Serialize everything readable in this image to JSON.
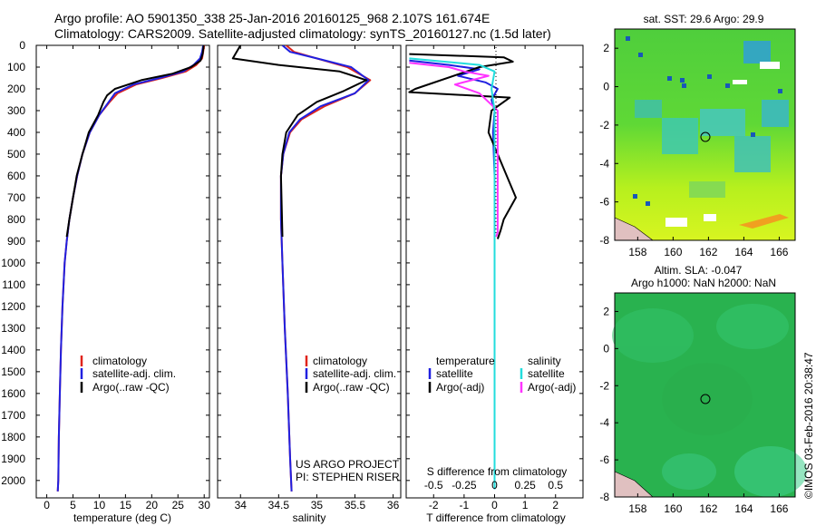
{
  "header": {
    "line1": "Argo profile: AO 5901350_338 25-Jan-2016 20160125_968 2.107S 161.674E",
    "line2": "Climatology: CARS2009. Satellite-adjusted climatology: synTS_20160127.nc (1.5d later)"
  },
  "chart_data": [
    {
      "type": "line",
      "name": "temperature-panel",
      "xlabel": "temperature (deg C)",
      "xlim": [
        -2,
        31
      ],
      "xticks": [
        0,
        5,
        10,
        15,
        20,
        25,
        30
      ],
      "ylim": [
        2080,
        0
      ],
      "yticks": [
        0,
        100,
        200,
        300,
        400,
        500,
        600,
        700,
        800,
        900,
        1000,
        1100,
        1200,
        1300,
        1400,
        1500,
        1600,
        1700,
        1800,
        1900,
        2000
      ],
      "legend": [
        "climatology",
        "satellite-adj. clim.",
        "Argo(..raw -QC)"
      ],
      "series": [
        {
          "color": "#e0241b",
          "x": [
            30.0,
            29.8,
            29.6,
            28.5,
            26.5,
            22.0,
            17.0,
            13.5,
            12.0,
            10.0,
            8.2,
            6.8,
            5.8,
            5.0,
            4.3,
            3.8,
            3.4,
            3.0,
            2.7,
            2.5,
            2.3,
            2.2,
            2.1
          ],
          "y": [
            0,
            30,
            60,
            90,
            120,
            150,
            180,
            220,
            260,
            320,
            400,
            500,
            600,
            700,
            800,
            900,
            1000,
            1200,
            1400,
            1600,
            1800,
            2000,
            2050
          ]
        },
        {
          "color": "#2020e0",
          "x": [
            29.8,
            29.6,
            29.2,
            28.0,
            26.0,
            21.5,
            16.5,
            13.0,
            11.8,
            10.0,
            8.2,
            6.8,
            5.8,
            5.0,
            4.3,
            3.8,
            3.4,
            3.0,
            2.7,
            2.5,
            2.3,
            2.2,
            2.1
          ],
          "y": [
            0,
            30,
            60,
            90,
            120,
            150,
            180,
            220,
            260,
            320,
            400,
            500,
            600,
            700,
            800,
            900,
            1000,
            1200,
            1400,
            1600,
            1800,
            2000,
            2050
          ]
        },
        {
          "color": "#000000",
          "x": [
            29.9,
            29.7,
            29.3,
            27.5,
            24.0,
            18.0,
            13.0,
            11.5,
            10.8,
            9.8,
            8.0,
            6.8,
            5.7,
            5.0,
            4.3,
            3.8
          ],
          "y": [
            0,
            40,
            70,
            100,
            130,
            160,
            200,
            230,
            260,
            320,
            400,
            500,
            600,
            700,
            800,
            880
          ]
        }
      ]
    },
    {
      "type": "line",
      "name": "salinity-panel",
      "xlabel": "salinity",
      "xlim": [
        33.7,
        36.1
      ],
      "xticks": [
        34,
        34.5,
        35,
        35.5,
        36
      ],
      "ylim": [
        2080,
        0
      ],
      "legend": [
        "climatology",
        "satellite-adj. clim.",
        "Argo(..raw -QC)"
      ],
      "annotation": [
        "US ARGO PROJECT",
        "PI: STEPHEN RISER"
      ],
      "series": [
        {
          "color": "#e0241b",
          "x": [
            34.6,
            34.7,
            35.0,
            35.4,
            35.7,
            35.5,
            35.1,
            34.8,
            34.65,
            34.56,
            34.53,
            34.53,
            34.55,
            34.58,
            34.62,
            34.65,
            34.67
          ],
          "y": [
            0,
            30,
            60,
            100,
            160,
            220,
            280,
            340,
            400,
            500,
            600,
            800,
            1000,
            1300,
            1600,
            1900,
            2050
          ]
        },
        {
          "color": "#2020e0",
          "x": [
            34.55,
            34.65,
            35.0,
            35.45,
            35.68,
            35.5,
            35.05,
            34.78,
            34.64,
            34.56,
            34.53,
            34.53,
            34.55,
            34.58,
            34.62,
            34.65,
            34.67
          ],
          "y": [
            0,
            30,
            60,
            100,
            160,
            220,
            280,
            340,
            400,
            500,
            600,
            800,
            1000,
            1300,
            1600,
            1900,
            2050
          ]
        },
        {
          "color": "#000000",
          "x": [
            34.0,
            33.9,
            34.5,
            35.3,
            35.65,
            35.35,
            35.0,
            34.75,
            34.6,
            34.55,
            34.53,
            34.55
          ],
          "y": [
            0,
            60,
            90,
            120,
            160,
            210,
            260,
            320,
            400,
            500,
            600,
            880
          ]
        }
      ]
    },
    {
      "type": "line",
      "name": "difference-panel",
      "xlabel_top": "S difference from climatology",
      "xlabel": "T difference from climatology",
      "xlim": [
        -2.9,
        2.9
      ],
      "xticks": [
        -2,
        -1,
        0,
        1,
        2
      ],
      "xticks_top_labels": [
        "-0.5",
        "-0.25",
        "0",
        "0.25",
        "0.5"
      ],
      "ylim": [
        2080,
        0
      ],
      "legend_titles": [
        "temperature",
        "salinity"
      ],
      "legend": [
        "satellite",
        "Argo(-adj)",
        "satellite",
        "Argo(-adj)"
      ],
      "series": [
        {
          "color": "#2020e0",
          "x": [
            -2.8,
            -1.5,
            -0.5,
            -1.2,
            -0.3,
            0.1,
            -0.1,
            0.0,
            -0.05,
            0.0,
            0.0,
            0.0,
            0.0,
            0.0
          ],
          "y": [
            70,
            90,
            110,
            140,
            170,
            200,
            250,
            300,
            400,
            600,
            900,
            1300,
            1700,
            2040
          ]
        },
        {
          "color": "#000000",
          "x": [
            -2.8,
            0.3,
            0.6,
            -0.5,
            -2.6,
            -2.8,
            0.5,
            -0.1,
            -0.2,
            0.1,
            0.4,
            0.7,
            0.3,
            0.2,
            0.1
          ],
          "y": [
            40,
            55,
            75,
            100,
            200,
            215,
            240,
            300,
            400,
            500,
            600,
            700,
            800,
            850,
            890
          ]
        },
        {
          "color": "#ff33ff",
          "x": [
            -2.8,
            -1.5,
            -1.0,
            -0.2,
            -1.3,
            -0.5,
            0.1,
            0.1,
            0.1,
            0.1,
            0.05
          ],
          "y": [
            80,
            100,
            120,
            140,
            180,
            220,
            300,
            500,
            700,
            860,
            880
          ]
        },
        {
          "color": "#22dddd",
          "x": [
            -2.8,
            -0.5,
            0.0,
            -0.1,
            0.0,
            0.0,
            0.0,
            0.0,
            0.0,
            0.0
          ],
          "y": [
            60,
            90,
            120,
            200,
            300,
            500,
            800,
            1200,
            1600,
            2040
          ]
        }
      ]
    }
  ],
  "sst_map": {
    "title": "sat. SST: 29.6 Argo: 29.9",
    "xticks": [
      "158",
      "160",
      "162",
      "164",
      "166"
    ],
    "yticks": [
      "2",
      "0",
      "-2",
      "-4",
      "-6",
      "-8"
    ]
  },
  "sla_map": {
    "title_line1": "Altim. SLA: -0.047",
    "title_line2": "Argo h1000: NaN h2000: NaN",
    "xticks": [
      "158",
      "160",
      "162",
      "164",
      "166"
    ],
    "yticks": [
      "2",
      "0",
      "-2",
      "-4",
      "-6",
      "-8"
    ]
  },
  "credit": "©IMOS 03-Feb-2016 20:38:47"
}
